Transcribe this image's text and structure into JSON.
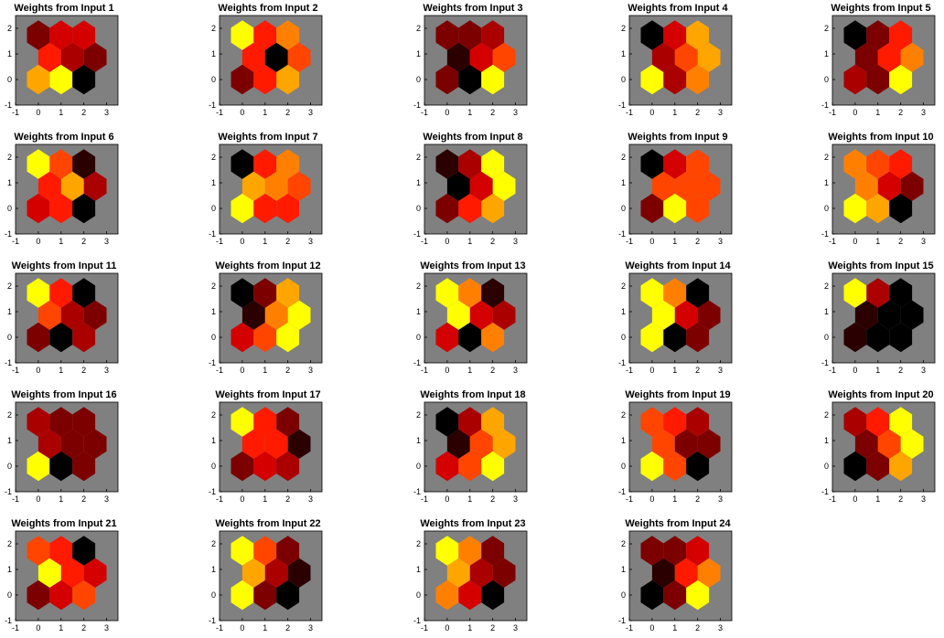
{
  "colormap": {
    "0": "#000000",
    "1": "#2a0000",
    "2": "#7d0000",
    "3": "#aa0000",
    "4": "#d40000",
    "5": "#ff1a00",
    "6": "#ff4500",
    "7": "#ff8000",
    "8": "#ffa500",
    "9": "#ffff00"
  },
  "background_color": "#808080",
  "chart_data": {
    "type": "heatmap",
    "layout": "hexagonal self-organizing map, 3x3 neurons",
    "xlim": [
      -1,
      3.5
    ],
    "ylim": [
      -1,
      2.5
    ],
    "xticks": [
      "-1",
      "0",
      "1",
      "2",
      "3"
    ],
    "yticks": [
      "-1",
      "0",
      "1",
      "2"
    ],
    "neuron_order": "bottom row left-to-right, then middle row, then top row",
    "plots": [
      {
        "title": "Weights from Input 1",
        "levels": [
          8,
          9,
          0,
          5,
          3,
          2,
          2,
          4,
          4
        ]
      },
      {
        "title": "Weights from Input 2",
        "levels": [
          2,
          5,
          8,
          5,
          0,
          6,
          9,
          5,
          7
        ]
      },
      {
        "title": "Weights from Input 3",
        "levels": [
          2,
          0,
          9,
          1,
          4,
          6,
          2,
          2,
          3
        ]
      },
      {
        "title": "Weights from Input 4",
        "levels": [
          9,
          3,
          7,
          3,
          6,
          8,
          0,
          4,
          8
        ]
      },
      {
        "title": "Weights from Input 5",
        "levels": [
          3,
          2,
          9,
          2,
          5,
          7,
          0,
          2,
          5
        ]
      },
      {
        "title": "Weights from Input 6",
        "levels": [
          4,
          5,
          0,
          5,
          8,
          3,
          9,
          6,
          1
        ]
      },
      {
        "title": "Weights from Input 7",
        "levels": [
          9,
          5,
          5,
          8,
          7,
          6,
          0,
          5,
          7
        ]
      },
      {
        "title": "Weights from Input 8",
        "levels": [
          2,
          5,
          8,
          0,
          4,
          9,
          1,
          3,
          9
        ]
      },
      {
        "title": "Weights from Input 9",
        "levels": [
          2,
          9,
          6,
          6,
          6,
          6,
          0,
          4,
          6
        ]
      },
      {
        "title": "Weights from Input 10",
        "levels": [
          9,
          8,
          0,
          7,
          4,
          2,
          7,
          6,
          5
        ]
      },
      {
        "title": "Weights from Input 11",
        "levels": [
          2,
          0,
          3,
          6,
          3,
          2,
          9,
          5,
          0
        ]
      },
      {
        "title": "Weights from Input 12",
        "levels": [
          4,
          6,
          9,
          1,
          7,
          9,
          0,
          2,
          8
        ]
      },
      {
        "title": "Weights from Input 13",
        "levels": [
          4,
          0,
          7,
          9,
          4,
          3,
          9,
          7,
          1
        ]
      },
      {
        "title": "Weights from Input 14",
        "levels": [
          9,
          0,
          2,
          9,
          4,
          2,
          9,
          7,
          0
        ]
      },
      {
        "title": "Weights from Input 15",
        "levels": [
          1,
          0,
          0,
          1,
          0,
          0,
          9,
          3,
          0
        ]
      },
      {
        "title": "Weights from Input 16",
        "levels": [
          9,
          0,
          2,
          3,
          2,
          2,
          3,
          2,
          2
        ]
      },
      {
        "title": "Weights from Input 17",
        "levels": [
          2,
          4,
          3,
          5,
          5,
          1,
          9,
          5,
          2
        ]
      },
      {
        "title": "Weights from Input 18",
        "levels": [
          4,
          6,
          9,
          1,
          6,
          8,
          0,
          3,
          8
        ]
      },
      {
        "title": "Weights from Input 19",
        "levels": [
          9,
          6,
          0,
          6,
          2,
          2,
          6,
          5,
          3
        ]
      },
      {
        "title": "Weights from Input 20",
        "levels": [
          0,
          2,
          8,
          2,
          6,
          9,
          3,
          5,
          9
        ]
      },
      {
        "title": "Weights from Input 21",
        "levels": [
          2,
          4,
          6,
          9,
          5,
          4,
          6,
          5,
          0
        ]
      },
      {
        "title": "Weights from Input 22",
        "levels": [
          9,
          2,
          0,
          8,
          3,
          1,
          9,
          6,
          2
        ]
      },
      {
        "title": "Weights from Input 23",
        "levels": [
          7,
          4,
          0,
          8,
          3,
          2,
          9,
          7,
          2
        ]
      },
      {
        "title": "Weights from Input 24",
        "levels": [
          0,
          2,
          9,
          1,
          5,
          7,
          2,
          2,
          4
        ]
      }
    ]
  }
}
